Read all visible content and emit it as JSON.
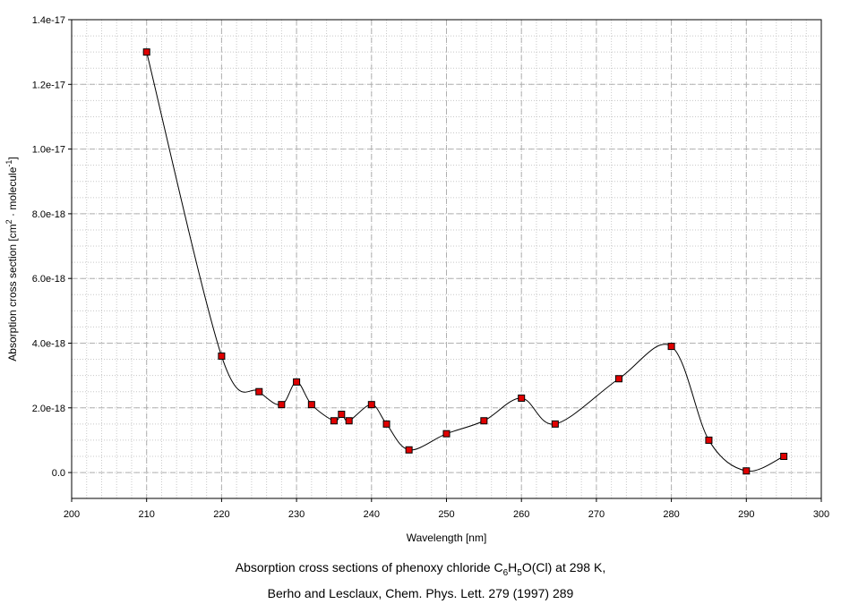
{
  "chart_data": {
    "type": "line",
    "title": "",
    "xlabel": "Wavelength [nm]",
    "ylabel": {
      "prefix": "Absorption cross section [cm",
      "sup1": "2",
      "middle": " · molecule",
      "sup2": "-1",
      "suffix": "]"
    },
    "xlim": [
      200,
      300
    ],
    "ylim": [
      -8e-19,
      1.4e-17
    ],
    "x_ticks": [
      "200",
      "210",
      "220",
      "230",
      "240",
      "250",
      "260",
      "270",
      "280",
      "290",
      "300"
    ],
    "y_ticks": [
      "0.0",
      "2.0e-18",
      "4.0e-18",
      "6.0e-18",
      "8.0e-18",
      "1.0e-17",
      "1.2e-17",
      "1.4e-17"
    ],
    "grid": true,
    "marker_color": "#e00000",
    "line_color": "#000000",
    "series": [
      {
        "x": [
          210,
          220,
          225,
          228,
          230,
          232,
          235,
          236,
          237,
          240,
          242,
          245,
          250,
          255,
          260,
          264.5,
          273,
          280,
          285,
          290,
          295
        ],
        "y": [
          1.3e-17,
          3.6e-18,
          2.5e-18,
          2.1e-18,
          2.8e-18,
          2.1e-18,
          1.6e-18,
          1.8e-18,
          1.6e-18,
          2.1e-18,
          1.5e-18,
          7e-19,
          1.2e-18,
          1.6e-18,
          2.3e-18,
          1.5e-18,
          2.9e-18,
          3.9e-18,
          1e-18,
          5e-20,
          5e-19
        ]
      }
    ]
  },
  "caption": {
    "line1_part1": "Absorption cross sections of phenoxy chloride C",
    "sub1": "6",
    "h": "H",
    "sub2": "5",
    "line1_part2": "O(Cl) at 298 K,",
    "line2": "Berho and Lesclaux, Chem. Phys. Lett. 279 (1997) 289"
  }
}
